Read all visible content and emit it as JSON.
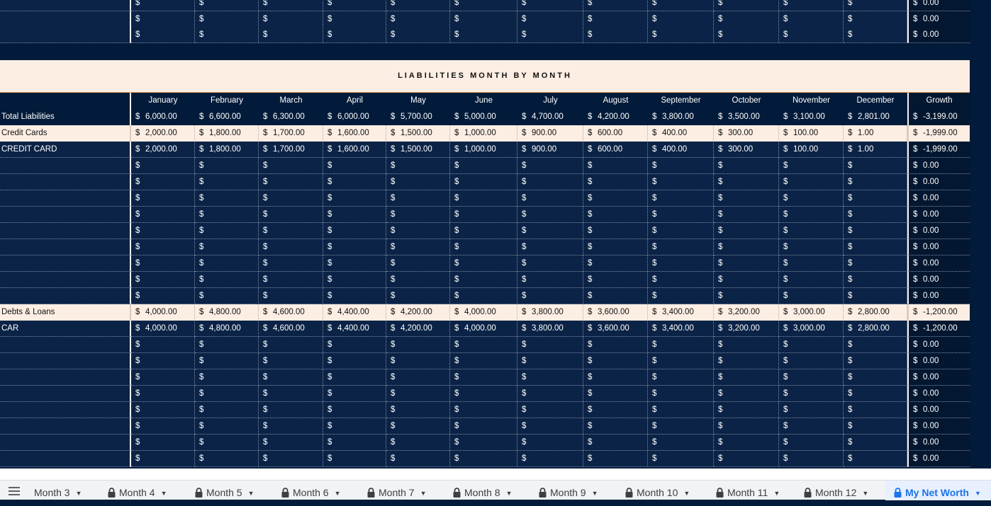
{
  "section_title": "LIABILITIES MONTH BY MONTH",
  "currency_symbol": "$",
  "columns": [
    "January",
    "February",
    "March",
    "April",
    "May",
    "June",
    "July",
    "August",
    "September",
    "October",
    "November",
    "December"
  ],
  "growth_header": "Growth",
  "top_rows": [
    {
      "values": [
        "",
        "",
        "",
        "",
        "",
        "",
        "",
        "",
        "",
        "",
        "",
        ""
      ],
      "growth": "0.00"
    },
    {
      "values": [
        "",
        "",
        "",
        "",
        "",
        "",
        "",
        "",
        "",
        "",
        "",
        ""
      ],
      "growth": "0.00"
    },
    {
      "values": [
        "",
        "",
        "",
        "",
        "",
        "",
        "",
        "",
        "",
        "",
        "",
        ""
      ],
      "growth": "0.00"
    }
  ],
  "liabilities_rows": [
    {
      "kind": "total",
      "label": "Total Liabilities",
      "values": [
        "6,000.00",
        "6,600.00",
        "6,300.00",
        "6,000.00",
        "5,700.00",
        "5,000.00",
        "4,700.00",
        "4,200.00",
        "3,800.00",
        "3,500.00",
        "3,100.00",
        "2,801.00"
      ],
      "growth": "-3,199.00"
    },
    {
      "kind": "cat",
      "label": "Credit Cards",
      "values": [
        "2,000.00",
        "1,800.00",
        "1,700.00",
        "1,600.00",
        "1,500.00",
        "1,000.00",
        "900.00",
        "600.00",
        "400.00",
        "300.00",
        "100.00",
        "1.00"
      ],
      "growth": "-1,999.00"
    },
    {
      "kind": "dark",
      "label": "CREDIT CARD",
      "values": [
        "2,000.00",
        "1,800.00",
        "1,700.00",
        "1,600.00",
        "1,500.00",
        "1,000.00",
        "900.00",
        "600.00",
        "400.00",
        "300.00",
        "100.00",
        "1.00"
      ],
      "growth": "-1,999.00"
    },
    {
      "kind": "dark",
      "label": "",
      "values": [
        "",
        "",
        "",
        "",
        "",
        "",
        "",
        "",
        "",
        "",
        "",
        ""
      ],
      "growth": "0.00"
    },
    {
      "kind": "dark",
      "label": "",
      "values": [
        "",
        "",
        "",
        "",
        "",
        "",
        "",
        "",
        "",
        "",
        "",
        ""
      ],
      "growth": "0.00"
    },
    {
      "kind": "dark",
      "label": "",
      "values": [
        "",
        "",
        "",
        "",
        "",
        "",
        "",
        "",
        "",
        "",
        "",
        ""
      ],
      "growth": "0.00"
    },
    {
      "kind": "dark",
      "label": "",
      "values": [
        "",
        "",
        "",
        "",
        "",
        "",
        "",
        "",
        "",
        "",
        "",
        ""
      ],
      "growth": "0.00"
    },
    {
      "kind": "dark",
      "label": "",
      "values": [
        "",
        "",
        "",
        "",
        "",
        "",
        "",
        "",
        "",
        "",
        "",
        ""
      ],
      "growth": "0.00"
    },
    {
      "kind": "dark",
      "label": "",
      "values": [
        "",
        "",
        "",
        "",
        "",
        "",
        "",
        "",
        "",
        "",
        "",
        ""
      ],
      "growth": "0.00"
    },
    {
      "kind": "dark",
      "label": "",
      "values": [
        "",
        "",
        "",
        "",
        "",
        "",
        "",
        "",
        "",
        "",
        "",
        ""
      ],
      "growth": "0.00"
    },
    {
      "kind": "dark",
      "label": "",
      "values": [
        "",
        "",
        "",
        "",
        "",
        "",
        "",
        "",
        "",
        "",
        "",
        ""
      ],
      "growth": "0.00"
    },
    {
      "kind": "dark",
      "label": "",
      "values": [
        "",
        "",
        "",
        "",
        "",
        "",
        "",
        "",
        "",
        "",
        "",
        ""
      ],
      "growth": "0.00"
    },
    {
      "kind": "cat",
      "label": "Debts & Loans",
      "values": [
        "4,000.00",
        "4,800.00",
        "4,600.00",
        "4,400.00",
        "4,200.00",
        "4,000.00",
        "3,800.00",
        "3,600.00",
        "3,400.00",
        "3,200.00",
        "3,000.00",
        "2,800.00"
      ],
      "growth": "-1,200.00"
    },
    {
      "kind": "dark",
      "label": "CAR",
      "values": [
        "4,000.00",
        "4,800.00",
        "4,600.00",
        "4,400.00",
        "4,200.00",
        "4,000.00",
        "3,800.00",
        "3,600.00",
        "3,400.00",
        "3,200.00",
        "3,000.00",
        "2,800.00"
      ],
      "growth": "-1,200.00"
    },
    {
      "kind": "dark",
      "label": "",
      "values": [
        "",
        "",
        "",
        "",
        "",
        "",
        "",
        "",
        "",
        "",
        "",
        ""
      ],
      "growth": "0.00"
    },
    {
      "kind": "dark",
      "label": "",
      "values": [
        "",
        "",
        "",
        "",
        "",
        "",
        "",
        "",
        "",
        "",
        "",
        ""
      ],
      "growth": "0.00"
    },
    {
      "kind": "dark",
      "label": "",
      "values": [
        "",
        "",
        "",
        "",
        "",
        "",
        "",
        "",
        "",
        "",
        "",
        ""
      ],
      "growth": "0.00"
    },
    {
      "kind": "dark",
      "label": "",
      "values": [
        "",
        "",
        "",
        "",
        "",
        "",
        "",
        "",
        "",
        "",
        "",
        ""
      ],
      "growth": "0.00"
    },
    {
      "kind": "dark",
      "label": "",
      "values": [
        "",
        "",
        "",
        "",
        "",
        "",
        "",
        "",
        "",
        "",
        "",
        ""
      ],
      "growth": "0.00"
    },
    {
      "kind": "dark",
      "label": "",
      "values": [
        "",
        "",
        "",
        "",
        "",
        "",
        "",
        "",
        "",
        "",
        "",
        ""
      ],
      "growth": "0.00"
    },
    {
      "kind": "dark",
      "label": "",
      "values": [
        "",
        "",
        "",
        "",
        "",
        "",
        "",
        "",
        "",
        "",
        "",
        ""
      ],
      "growth": "0.00"
    },
    {
      "kind": "dark",
      "label": "",
      "values": [
        "",
        "",
        "",
        "",
        "",
        "",
        "",
        "",
        "",
        "",
        "",
        ""
      ],
      "growth": "0.00"
    }
  ],
  "sheet_tabs": [
    {
      "label": "Month 3",
      "locked": false,
      "active": false
    },
    {
      "label": "Month 4",
      "locked": true,
      "active": false
    },
    {
      "label": "Month 5",
      "locked": true,
      "active": false
    },
    {
      "label": "Month 6",
      "locked": true,
      "active": false
    },
    {
      "label": "Month 7",
      "locked": true,
      "active": false
    },
    {
      "label": "Month 8",
      "locked": true,
      "active": false
    },
    {
      "label": "Month 9",
      "locked": true,
      "active": false
    },
    {
      "label": "Month 10",
      "locked": true,
      "active": false
    },
    {
      "label": "Month 11",
      "locked": true,
      "active": false
    },
    {
      "label": "Month 12",
      "locked": true,
      "active": false
    },
    {
      "label": "My Net Worth",
      "locked": true,
      "active": true
    }
  ],
  "colors": {
    "navy": "#021b3a",
    "row_dark": "#0b2346",
    "peach": "#fdeee3",
    "accent_orange": "#e7a35c",
    "tab_active": "#1a73e8"
  }
}
